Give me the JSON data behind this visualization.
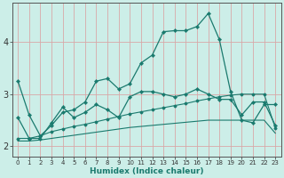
{
  "xlabel": "Humidex (Indice chaleur)",
  "bg_color": "#cceee8",
  "grid_color": "#d8a8a8",
  "line_color": "#1a7a6e",
  "x": [
    0,
    1,
    2,
    3,
    4,
    5,
    6,
    7,
    8,
    9,
    10,
    11,
    12,
    13,
    14,
    15,
    16,
    17,
    18,
    19,
    20,
    21,
    22,
    23
  ],
  "series1": [
    3.25,
    2.6,
    2.2,
    2.4,
    2.65,
    2.7,
    2.85,
    3.25,
    3.3,
    3.1,
    3.2,
    3.6,
    3.75,
    4.2,
    4.22,
    4.22,
    4.3,
    4.55,
    4.05,
    3.05,
    2.5,
    2.45,
    2.8,
    2.8
  ],
  "series2": [
    2.55,
    2.15,
    2.15,
    2.45,
    2.75,
    2.55,
    2.65,
    2.8,
    2.7,
    2.55,
    2.95,
    3.05,
    3.05,
    3.0,
    2.95,
    3.0,
    3.1,
    3.0,
    2.9,
    2.9,
    2.6,
    2.85,
    2.85,
    2.4
  ],
  "series3": [
    2.15,
    2.15,
    2.2,
    2.28,
    2.33,
    2.38,
    2.42,
    2.47,
    2.52,
    2.57,
    2.62,
    2.66,
    2.7,
    2.74,
    2.78,
    2.82,
    2.87,
    2.91,
    2.95,
    2.98,
    3.0,
    3.0,
    3.0,
    2.35
  ],
  "series4": [
    2.1,
    2.1,
    2.12,
    2.15,
    2.18,
    2.21,
    2.24,
    2.27,
    2.3,
    2.33,
    2.36,
    2.38,
    2.4,
    2.42,
    2.44,
    2.46,
    2.48,
    2.5,
    2.5,
    2.5,
    2.5,
    2.5,
    2.5,
    2.25
  ],
  "ylim": [
    1.8,
    4.75
  ],
  "yticks": [
    2,
    3,
    4
  ],
  "xticks": [
    0,
    1,
    2,
    3,
    4,
    5,
    6,
    7,
    8,
    9,
    10,
    11,
    12,
    13,
    14,
    15,
    16,
    17,
    18,
    19,
    20,
    21,
    22,
    23
  ]
}
